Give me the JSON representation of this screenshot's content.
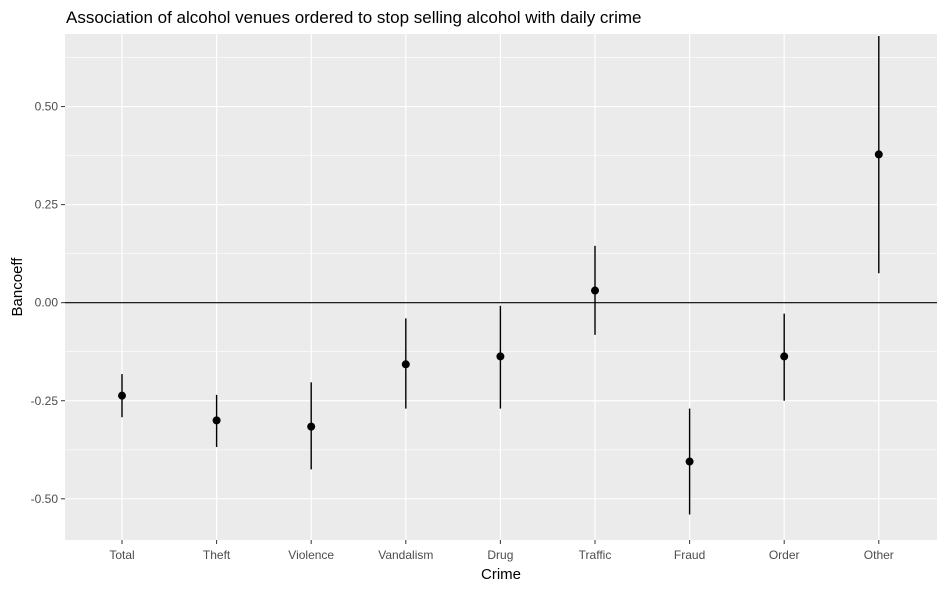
{
  "chart_data": {
    "type": "scatter",
    "title": "Association of alcohol venues ordered to stop selling alcohol with daily crime",
    "xlabel": "Crime",
    "ylabel": "Bancoeff",
    "ylim": [
      -0.605,
      0.685
    ],
    "yticks": [
      -0.5,
      -0.25,
      0.0,
      0.25,
      0.5
    ],
    "ytick_labels": [
      "-0.50",
      "-0.25",
      "0.00",
      "0.25",
      "0.50"
    ],
    "reference_line": 0,
    "grid": true,
    "categories": [
      "Total",
      "Theft",
      "Violence",
      "Vandalism",
      "Drug",
      "Traffic",
      "Fraud",
      "Order",
      "Other"
    ],
    "estimates": [
      -0.237,
      -0.3,
      -0.316,
      -0.157,
      -0.137,
      0.031,
      -0.405,
      -0.137,
      0.378
    ],
    "ci_lower": [
      -0.292,
      -0.368,
      -0.425,
      -0.27,
      -0.27,
      -0.082,
      -0.54,
      -0.25,
      0.075
    ],
    "ci_upper": [
      -0.182,
      -0.235,
      -0.203,
      -0.04,
      -0.008,
      0.145,
      -0.27,
      -0.028,
      0.68
    ]
  },
  "colors": {
    "panel_background": "#ebebeb",
    "grid": "#ffffff",
    "marker": "#000000"
  }
}
